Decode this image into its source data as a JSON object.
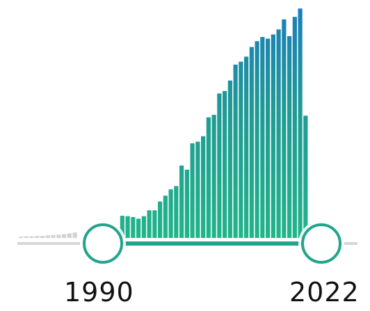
{
  "slider": {
    "range_start_label": "1990",
    "range_end_label": "2022",
    "colors": {
      "selected_low": "#22b48a",
      "selected_high": "#1b7dbd",
      "unselected": "#d3d3d3",
      "handle_border": "#21a58a",
      "track_selected": "#21a58a",
      "track_unselected": "#d6d6d6"
    }
  },
  "chart_data": {
    "type": "bar",
    "unselected_values": [
      3,
      4,
      4,
      5,
      5,
      6,
      7,
      8,
      9,
      11,
      13
    ],
    "selected_values": [
      16,
      53,
      52,
      50,
      46,
      52,
      66,
      66,
      87,
      101,
      116,
      124,
      173,
      163,
      226,
      230,
      243,
      288,
      294,
      345,
      351,
      376,
      414,
      421,
      433,
      456,
      470,
      480,
      476,
      486,
      498,
      522,
      482,
      528,
      548,
      292
    ],
    "ylim": [
      0,
      560
    ]
  }
}
